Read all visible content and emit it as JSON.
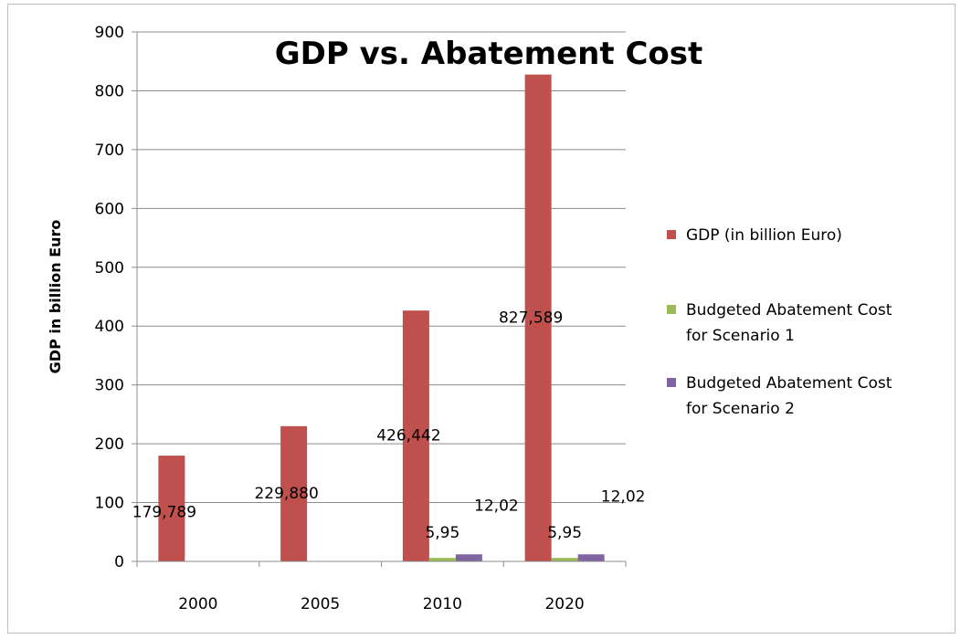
{
  "chart_data": {
    "type": "bar",
    "title": "GDP vs. Abatement Cost",
    "xlabel": "",
    "ylabel": "GDP in billion  Euro",
    "categories": [
      "2000",
      "2005",
      "2010",
      "2020"
    ],
    "ylim": [
      0,
      900
    ],
    "yticks": [
      0,
      100,
      200,
      300,
      400,
      500,
      600,
      700,
      800,
      900
    ],
    "grid": true,
    "legend_position": "right",
    "series": [
      {
        "name": "GDP (in billion Euro)",
        "color": "#c0504d",
        "values": [
          179.789,
          229.88,
          426.442,
          827.589
        ],
        "labels": [
          "179,789",
          "229,880",
          "426,442",
          "827,589"
        ]
      },
      {
        "name": "Budgeted Abatement Cost for Scenario 1",
        "legend_lines": [
          "Budgeted Abatement Cost",
          "for Scenario 1"
        ],
        "color": "#9bbb59",
        "values": [
          null,
          null,
          5.95,
          5.95
        ],
        "labels": [
          null,
          null,
          "5,95",
          "5,95"
        ]
      },
      {
        "name": "Budgeted Abatement Cost for Scenario 2",
        "legend_lines": [
          "Budgeted Abatement Cost",
          "for Scenario 2"
        ],
        "color": "#8064a2",
        "values": [
          null,
          null,
          12.02,
          12.02
        ],
        "labels": [
          null,
          null,
          "12,02",
          "12,02"
        ]
      }
    ]
  }
}
